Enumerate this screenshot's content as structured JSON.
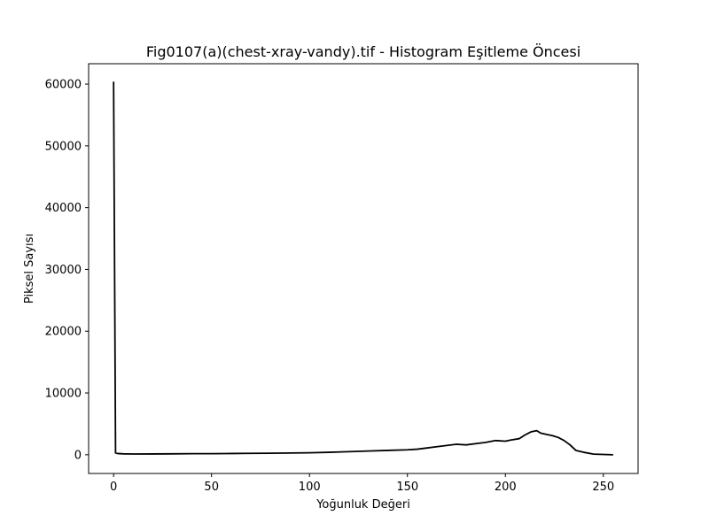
{
  "chart_data": {
    "type": "line",
    "title": "Fig0107(a)(chest-xray-vandy).tif - Histogram Eşitleme Öncesi",
    "xlabel": "Yoğunluk Değeri",
    "ylabel": "Piksel Sayısı",
    "xlim": [
      -12.75,
      267.75
    ],
    "ylim": [
      -3030,
      63300
    ],
    "xticks": [
      0,
      50,
      100,
      150,
      200,
      250
    ],
    "yticks": [
      0,
      10000,
      20000,
      30000,
      40000,
      50000,
      60000
    ],
    "grid": false,
    "line_color": "#000000",
    "series": [
      {
        "x": [
          0,
          1,
          2,
          5,
          10,
          20,
          30,
          40,
          50,
          60,
          70,
          80,
          90,
          100,
          110,
          120,
          130,
          140,
          150,
          155,
          160,
          165,
          170,
          175,
          180,
          185,
          190,
          195,
          200,
          203,
          207,
          210,
          213,
          216,
          218,
          221,
          224,
          227,
          230,
          233,
          236,
          240,
          245,
          250,
          255
        ],
        "y": [
          60400,
          300,
          200,
          150,
          120,
          130,
          150,
          170,
          180,
          200,
          230,
          250,
          280,
          320,
          400,
          500,
          600,
          700,
          800,
          900,
          1100,
          1300,
          1500,
          1700,
          1600,
          1800,
          2000,
          2300,
          2200,
          2400,
          2600,
          3200,
          3700,
          3900,
          3500,
          3300,
          3100,
          2800,
          2300,
          1600,
          700,
          400,
          100,
          50,
          0
        ]
      }
    ]
  }
}
